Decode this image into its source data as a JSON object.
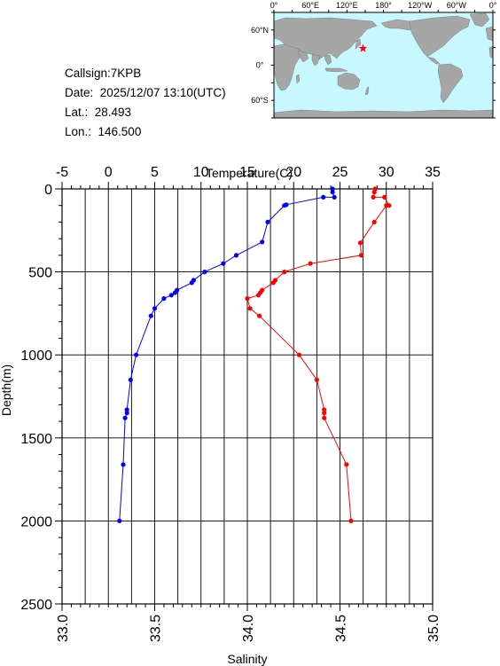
{
  "info": {
    "callsign": "Callsign:7KPB",
    "date": "Date:  2025/12/07 13:10(UTC)",
    "lat": "Lat.:  28.493",
    "lon": "Lon.:  146.500"
  },
  "map": {
    "lon_ticks": [
      "0°",
      "60°E",
      "120°E",
      "180°",
      "120°W",
      "60°W",
      "0°"
    ],
    "lat_ticks": [
      "60°N",
      "0°",
      "60°S"
    ],
    "ocean_color": "#c8f8ff",
    "land_color": "#a6a6a6",
    "marker": {
      "lat": 28.493,
      "lon": 146.5,
      "color": "#ff0000",
      "icon": "star-icon"
    }
  },
  "chart_data": {
    "type": "line",
    "ylabel": "Depth(m)",
    "ylim": [
      0,
      2500
    ],
    "yticks": [
      0,
      500,
      1000,
      1500,
      2000,
      2500
    ],
    "reversed_y": true,
    "top_axis": {
      "label": "Temperature(C)",
      "range": [
        -5,
        35
      ],
      "ticks": [
        -5,
        0,
        5,
        10,
        15,
        20,
        25,
        30,
        35
      ]
    },
    "bottom_axis": {
      "label": "Salinity",
      "range": [
        33.0,
        35.0
      ],
      "ticks": [
        "33.0",
        "33.5",
        "34.0",
        "34.5",
        "35.0"
      ]
    },
    "grid": true,
    "series": [
      {
        "axis": "top",
        "color": "#ff0000",
        "points": [
          [
            28.8,
            0
          ],
          [
            28.7,
            20
          ],
          [
            28.6,
            50
          ],
          [
            29.8,
            50
          ],
          [
            30.3,
            100
          ],
          [
            30.0,
            100
          ],
          [
            28.7,
            200
          ],
          [
            27.2,
            325
          ],
          [
            27.3,
            400
          ],
          [
            21.8,
            450
          ],
          [
            19.0,
            500
          ],
          [
            18.0,
            550
          ],
          [
            17.8,
            565
          ],
          [
            16.6,
            610
          ],
          [
            16.4,
            625
          ],
          [
            16.2,
            640
          ],
          [
            15.0,
            660
          ],
          [
            15.3,
            720
          ],
          [
            16.3,
            765
          ],
          [
            20.6,
            1000
          ],
          [
            22.5,
            1150
          ],
          [
            23.3,
            1330
          ],
          [
            23.3,
            1350
          ],
          [
            23.3,
            1380
          ],
          [
            25.7,
            1660
          ],
          [
            26.2,
            2000
          ]
        ]
      },
      {
        "axis": "bottom",
        "color": "#0000ff",
        "points": [
          [
            34.46,
            0
          ],
          [
            34.46,
            20
          ],
          [
            34.47,
            50
          ],
          [
            34.41,
            50
          ],
          [
            34.21,
            95
          ],
          [
            34.2,
            100
          ],
          [
            34.11,
            200
          ],
          [
            34.08,
            320
          ],
          [
            33.94,
            400
          ],
          [
            33.87,
            450
          ],
          [
            33.77,
            500
          ],
          [
            33.71,
            550
          ],
          [
            33.7,
            565
          ],
          [
            33.62,
            610
          ],
          [
            33.61,
            625
          ],
          [
            33.59,
            640
          ],
          [
            33.55,
            660
          ],
          [
            33.5,
            720
          ],
          [
            33.48,
            765
          ],
          [
            33.4,
            1000
          ],
          [
            33.37,
            1150
          ],
          [
            33.35,
            1330
          ],
          [
            33.35,
            1350
          ],
          [
            33.34,
            1380
          ],
          [
            33.33,
            1660
          ],
          [
            33.31,
            2000
          ]
        ]
      }
    ]
  }
}
